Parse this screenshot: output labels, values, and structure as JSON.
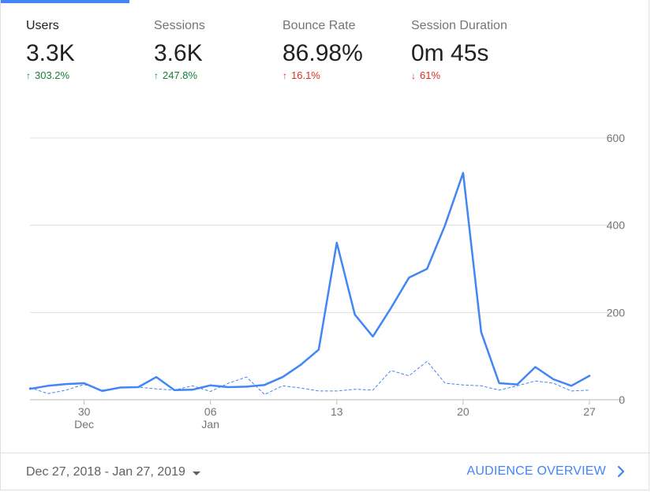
{
  "metrics": [
    {
      "label": "Users",
      "value": "3.3K",
      "change": "303.2%",
      "arrow": "↑"
    },
    {
      "label": "Sessions",
      "value": "3.6K",
      "change": "247.8%",
      "arrow": "↑"
    },
    {
      "label": "Bounce Rate",
      "value": "86.98%",
      "change": "16.1%",
      "arrow": "↑"
    },
    {
      "label": "Session Duration",
      "value": "0m 45s",
      "change": "61%",
      "arrow": "↓"
    }
  ],
  "colors": {
    "accent": "#4285f4",
    "positive": "#188038",
    "negative": "#d93025",
    "grid": "#e0e0e0"
  },
  "footer": {
    "date_range": "Dec 27, 2018 - Jan 27, 2019",
    "link_label": "AUDIENCE OVERVIEW"
  },
  "chart_data": {
    "type": "line",
    "x": [
      "Dec 27",
      "Dec 28",
      "Dec 29",
      "Dec 30",
      "Dec 31",
      "Jan 1",
      "Jan 2",
      "Jan 3",
      "Jan 4",
      "Jan 5",
      "Jan 6",
      "Jan 7",
      "Jan 8",
      "Jan 9",
      "Jan 10",
      "Jan 11",
      "Jan 12",
      "Jan 13",
      "Jan 14",
      "Jan 15",
      "Jan 16",
      "Jan 17",
      "Jan 18",
      "Jan 19",
      "Jan 20",
      "Jan 21",
      "Jan 22",
      "Jan 23",
      "Jan 24",
      "Jan 25",
      "Jan 26",
      "Jan 27"
    ],
    "x_tick_labels": [
      {
        "index": 3,
        "label": "30",
        "sublabel": "Dec"
      },
      {
        "index": 10,
        "label": "06",
        "sublabel": "Jan"
      },
      {
        "index": 17,
        "label": "13",
        "sublabel": ""
      },
      {
        "index": 24,
        "label": "20",
        "sublabel": ""
      },
      {
        "index": 31,
        "label": "27",
        "sublabel": ""
      }
    ],
    "y_ticks": [
      0,
      200,
      400,
      600
    ],
    "ylim": [
      0,
      600
    ],
    "series": [
      {
        "style": "solid",
        "values": [
          25,
          32,
          36,
          38,
          20,
          28,
          29,
          52,
          22,
          23,
          33,
          29,
          30,
          34,
          52,
          80,
          115,
          360,
          195,
          145,
          210,
          280,
          300,
          400,
          520,
          155,
          38,
          35,
          75,
          47,
          32,
          55
        ]
      },
      {
        "style": "dashed",
        "values": [
          28,
          14,
          22,
          35,
          22,
          27,
          29,
          25,
          22,
          32,
          19,
          38,
          52,
          12,
          32,
          27,
          20,
          20,
          24,
          22,
          67,
          55,
          88,
          38,
          34,
          32,
          22,
          32,
          43,
          38,
          20,
          22
        ]
      }
    ]
  }
}
